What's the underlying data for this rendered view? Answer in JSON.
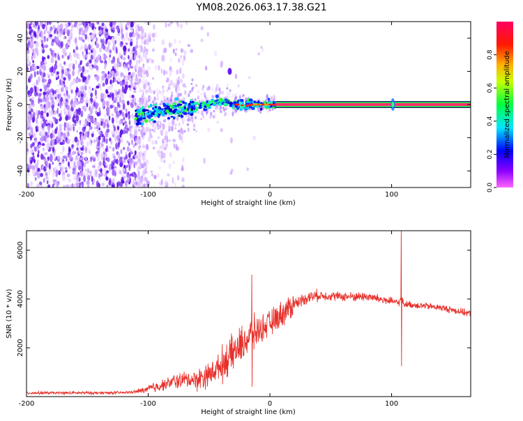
{
  "title": "YM08.2026.063.17.38.G21",
  "colors": {
    "snr_line": "#e8302a",
    "spectrogram_scatter": "#6a1bf0",
    "axis": "#000000"
  },
  "chart_data": [
    {
      "type": "heatmap",
      "name": "spectrogram",
      "title": "",
      "xlabel": "Height of straight line (km)",
      "ylabel": "Frequency (Hz)",
      "xlim": [
        -200,
        165
      ],
      "ylim": [
        -50,
        50
      ],
      "xticks": [
        -200,
        -100,
        0,
        100
      ],
      "yticks": [
        -40,
        -20,
        0,
        20,
        40
      ],
      "colorbar": {
        "label": "Normalized spectral amplitude",
        "range": [
          0,
          1
        ],
        "ticks": [
          "0.0",
          "0.2",
          "0.4",
          "0.6",
          "0.8"
        ],
        "colormap": "rainbow (magenta-blue-cyan-green-yellow-orange-red-pink)"
      },
      "features": {
        "noise_region_km": [
          -200,
          -100
        ],
        "signal_onset_km": -110,
        "steady_carrier_start_km": 5,
        "steady_carrier_freq_hz": 0,
        "spur": {
          "x_km": -33,
          "freq_hz": 20
        },
        "artifact_km": 101
      },
      "trace": {
        "x": [
          -110,
          -100,
          -90,
          -80,
          -70,
          -60,
          -50,
          -40,
          -35,
          -30,
          -25,
          -20,
          -15,
          -10,
          -5,
          0,
          5
        ],
        "freq": [
          -7,
          -5,
          -4,
          -3,
          -2,
          -1,
          0,
          2,
          1,
          0,
          0,
          -1,
          0,
          0,
          0,
          0,
          0
        ]
      }
    },
    {
      "type": "line",
      "name": "snr",
      "title": "",
      "xlabel": "Height of straight line (km)",
      "ylabel": "SNR (10 * v/v)",
      "xlim": [
        -200,
        165
      ],
      "ylim": [
        0,
        6800
      ],
      "xticks": [
        -200,
        -100,
        0,
        100
      ],
      "yticks": [
        2000,
        4000,
        6000
      ],
      "series": [
        {
          "name": "SNR",
          "x": [
            -200,
            -150,
            -120,
            -110,
            -100,
            -90,
            -80,
            -70,
            -60,
            -50,
            -40,
            -30,
            -20,
            -10,
            0,
            10,
            20,
            30,
            40,
            60,
            80,
            90,
            100,
            106,
            108,
            110,
            120,
            140,
            165
          ],
          "y": [
            150,
            150,
            160,
            200,
            300,
            450,
            600,
            700,
            700,
            900,
            1300,
            1800,
            2300,
            2700,
            3000,
            3400,
            3800,
            4050,
            4150,
            4100,
            4100,
            4000,
            3900,
            3850,
            4000,
            3800,
            3750,
            3650,
            3400
          ]
        }
      ],
      "annotations": [
        {
          "x": -15,
          "peak": 5000,
          "trough": 400
        },
        {
          "x": 108,
          "peak": 6900,
          "trough": 1250
        }
      ]
    }
  ]
}
